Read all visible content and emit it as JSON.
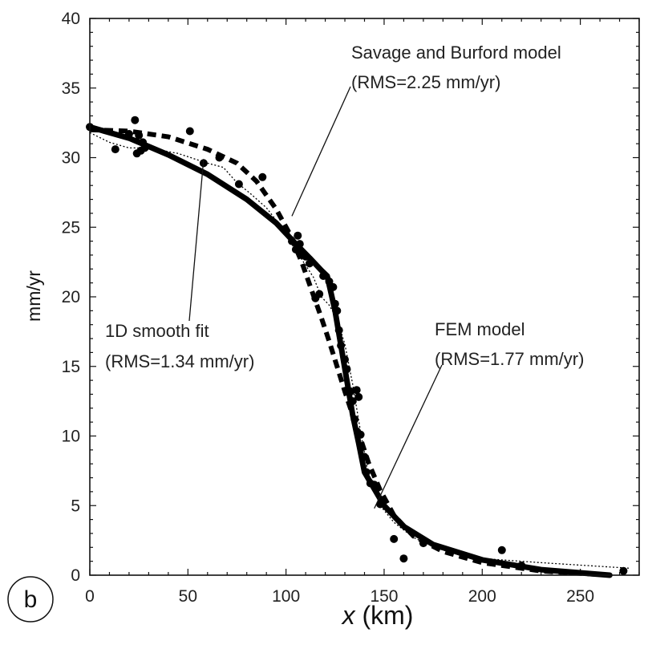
{
  "chart_data": {
    "type": "scatter",
    "panel_label": "b",
    "xlabel_var": "x",
    "xlabel_unit": " (km)",
    "ylabel": "mm/yr",
    "xlim": [
      0,
      280
    ],
    "ylim": [
      0,
      40
    ],
    "xticks": [
      0,
      50,
      100,
      150,
      200,
      250
    ],
    "yticks": [
      0,
      5,
      10,
      15,
      20,
      25,
      30,
      35,
      40
    ],
    "grid": false,
    "annotations": [
      {
        "lines": [
          "Savage and Burford model",
          "(RMS=2.25 mm/yr)"
        ],
        "target_series": "savage_burford"
      },
      {
        "lines": [
          "1D smooth fit",
          "(RMS=1.34 mm/yr)"
        ],
        "target_series": "smooth_fit"
      },
      {
        "lines": [
          "FEM model",
          "(RMS=1.77 mm/yr)"
        ],
        "target_series": "fem"
      }
    ],
    "observations": {
      "x": [
        0,
        13,
        20,
        23,
        24,
        25,
        26,
        27,
        28,
        51,
        58,
        66,
        76,
        88,
        100,
        103,
        105,
        106,
        107,
        108,
        110,
        112,
        115,
        117,
        119,
        122,
        124,
        125,
        126,
        127,
        128,
        130,
        131,
        133,
        134,
        135,
        136,
        137,
        138,
        140,
        141,
        143,
        145,
        148,
        155,
        160,
        170,
        210,
        220,
        272
      ],
      "y": [
        32.2,
        30.6,
        31.7,
        32.7,
        30.3,
        31.6,
        30.5,
        31.1,
        30.7,
        31.9,
        29.6,
        30.0,
        28.1,
        28.6,
        24.7,
        24.0,
        23.4,
        24.4,
        23.8,
        23.0,
        22.9,
        22.4,
        19.9,
        20.2,
        21.5,
        21.1,
        20.7,
        19.5,
        19.0,
        17.6,
        16.5,
        15.5,
        14.8,
        13.2,
        12.5,
        11.2,
        13.3,
        12.8,
        10.1,
        8.5,
        7.4,
        6.6,
        6.5,
        5.1,
        2.6,
        1.2,
        2.3,
        1.8,
        0.7,
        0.3
      ]
    },
    "series": [
      {
        "id": "smooth_fit",
        "style": "thick-solid",
        "x": [
          0,
          20,
          40,
          60,
          80,
          95,
          105,
          112,
          118,
          121,
          125,
          128,
          131,
          134,
          137,
          140,
          145,
          150,
          160,
          175,
          200,
          230,
          265
        ],
        "y": [
          32.2,
          31.4,
          30.2,
          28.8,
          27.0,
          25.3,
          23.8,
          22.8,
          21.9,
          21.5,
          19.0,
          16.5,
          14.0,
          11.5,
          9.5,
          7.4,
          6.2,
          5.0,
          3.5,
          2.2,
          1.1,
          0.4,
          0.0
        ]
      },
      {
        "id": "savage_burford",
        "style": "thick-dashed",
        "x": [
          0,
          20,
          40,
          60,
          75,
          85,
          95,
          102,
          108,
          113,
          118,
          122,
          126,
          130,
          134,
          138,
          142,
          148,
          155,
          165,
          180,
          200,
          230,
          265
        ],
        "y": [
          32.0,
          31.9,
          31.5,
          30.6,
          29.6,
          28.3,
          26.3,
          24.5,
          22.5,
          20.5,
          18.5,
          16.8,
          15.0,
          13.2,
          11.5,
          9.8,
          8.1,
          6.1,
          4.3,
          2.8,
          1.7,
          0.9,
          0.3,
          0.0
        ]
      },
      {
        "id": "fem",
        "style": "thin-dotted",
        "x": [
          0,
          10,
          20,
          30,
          45,
          60,
          68,
          75,
          82,
          90,
          100,
          108,
          114,
          118,
          122,
          126,
          130,
          134,
          138,
          142,
          148,
          155,
          165,
          180,
          200,
          230,
          275
        ],
        "y": [
          31.8,
          31.1,
          30.7,
          30.7,
          30.3,
          29.6,
          29.3,
          28.2,
          27.4,
          26.4,
          24.6,
          22.7,
          21.4,
          20.0,
          19.4,
          18.4,
          16.6,
          13.7,
          10.3,
          7.2,
          5.0,
          3.8,
          2.7,
          1.8,
          1.2,
          0.9,
          0.5
        ]
      }
    ]
  }
}
